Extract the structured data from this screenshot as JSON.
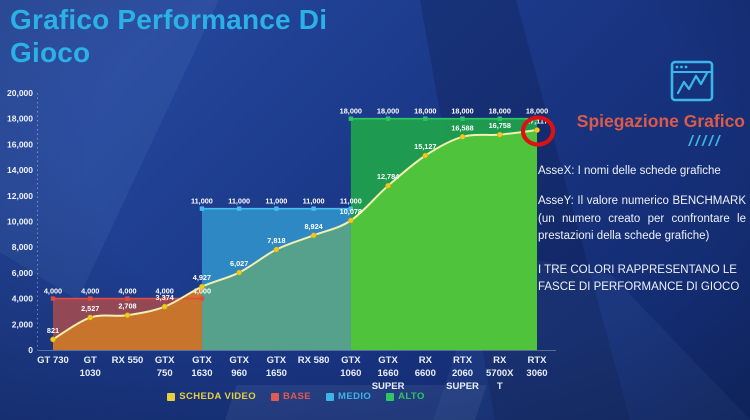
{
  "title": "Grafico Performance Di Gioco",
  "panel": {
    "title": "Spiegazione Grafico",
    "slashes": "/////",
    "axis_x": "AsseX: I nomi delle schede grafiche",
    "axis_y": "AsseY: Il valore numerico BENCHMARK (un numero creato per confrontare le prestazioni della schede grafiche)",
    "colors_note": "I TRE COLORI RAPPRESENTANO LE FASCE DI PERFORMANCE DI GIOCO",
    "accent_color": "#dc5a49",
    "icon_color": "#3ab6ea"
  },
  "legend": [
    {
      "label": "SCHEDA VIDEO",
      "color": "#e8cf3e"
    },
    {
      "label": "BASE",
      "color": "#e05a50"
    },
    {
      "label": "MEDIO",
      "color": "#3cb4e8"
    },
    {
      "label": "ALTO",
      "color": "#2fc565"
    }
  ],
  "chart_data": {
    "type": "area",
    "title": "Grafico Performance Di Gioco",
    "categories": [
      "GT 730",
      "GT 1030",
      "RX 550",
      "GTX 750",
      "GTX 1630",
      "GTX 960",
      "GTX 1650",
      "RX 580",
      "GTX 1060",
      "GTX 1660 SUPER",
      "RX 6600",
      "RTX 2060 SUPER",
      "RX 5700XT",
      "RTX 3060"
    ],
    "category_label_lines": [
      [
        "GT 730"
      ],
      [
        "GT",
        "1030"
      ],
      [
        "RX 550"
      ],
      [
        "GTX",
        "750"
      ],
      [
        "GTX",
        "1630"
      ],
      [
        "GTX",
        "960"
      ],
      [
        "GTX",
        "1650"
      ],
      [
        "RX 580"
      ],
      [
        "GTX",
        "1060"
      ],
      [
        "GTX",
        "1660",
        "SUPER"
      ],
      [
        "RX",
        "6600"
      ],
      [
        "RTX",
        "2060",
        "SUPER"
      ],
      [
        "RX",
        "5700X",
        "T"
      ],
      [
        "RTX",
        "3060"
      ]
    ],
    "series": [
      {
        "name": "SCHEDA VIDEO",
        "type": "line",
        "values": [
          821,
          2527,
          2708,
          3374,
          4927,
          6027,
          7818,
          8924,
          10078,
          12784,
          15127,
          16588,
          16758,
          17117
        ],
        "color": "#f3efae",
        "marker_color": "#f0cb1e",
        "area_colors_by_zone": [
          "#c9742d",
          "#55a18c",
          "#4fc33c"
        ]
      },
      {
        "name": "BASE",
        "type": "band",
        "value": 4000,
        "from_index": 0,
        "to_index": 4,
        "fill": "#9c4952",
        "line_color": "#e34943"
      },
      {
        "name": "MEDIO",
        "type": "band",
        "value": 11000,
        "from_index": 4,
        "to_index": 8,
        "fill": "#2e8ec8",
        "line_color": "#45bdf0"
      },
      {
        "name": "ALTO",
        "type": "band",
        "value": 18000,
        "from_index": 8,
        "to_index": 13,
        "fill": "#1ea24b",
        "line_color": "#2ec564"
      }
    ],
    "ylim": [
      0,
      20000
    ],
    "ytick_step": 2000,
    "grid": false,
    "legend_position": "bottom",
    "annotation": {
      "shape": "circle",
      "category": "RTX 3060",
      "value": 17117,
      "color": "#dd1111"
    }
  }
}
